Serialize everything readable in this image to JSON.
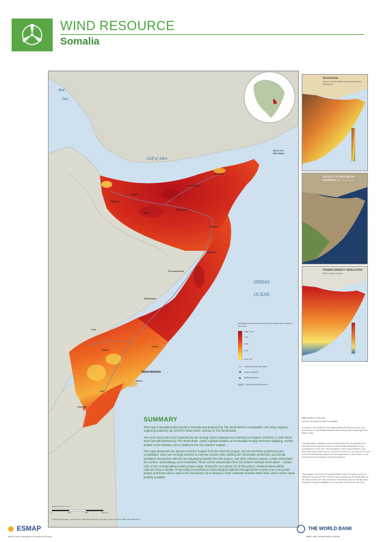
{
  "header": {
    "title": "WIND RESOURCE",
    "subtitle": "Somalia"
  },
  "map": {
    "sea_labels": {
      "gulf": "Gulf of Aden",
      "ocean_1": "INDIAN",
      "ocean_2": "OCEAN",
      "red_sea_1": "Red",
      "red_sea_2": "Sea"
    },
    "cape_label": "Abd al Kuri\n(Ras Asayr)",
    "capital": "MOGADISHU",
    "places": [
      "Bosaaso",
      "Berbera",
      "Hargeysa",
      "Burco",
      "Garoowe",
      "Gaalkacyo",
      "Beledweyne",
      "Baidoa",
      "Kismaayo",
      "Merca",
      "Jowhar",
      "Laascaanood",
      "Ceerigaabo",
      "Dhuusamarreeb",
      "Luuq",
      "Jilib"
    ]
  },
  "legend": {
    "title": "Simulated mean wind speed at 100 m height above ground level m/s",
    "high": "High: 11.4",
    "ticks": [
      "7.00",
      "5.25",
      "3.75"
    ],
    "low": "Low: 2.8",
    "items": [
      "Selected cities and towns",
      "Region capitals",
      "National capital",
      "International boundaries"
    ]
  },
  "side_panels": [
    {
      "title": "ELEVATION",
      "sub": "Source: Shuttle Radar Topography Mission (SRTM) 30"
    },
    {
      "title": "SATELLITE VIEW (BLUE MARBLE)",
      "sub": "Source: NASA Earth Observatory"
    },
    {
      "title": "POWER DENSITY SIMULATED",
      "sub": "W/m² at 100 m height"
    }
  ],
  "summary": {
    "heading": "SUMMARY",
    "paragraphs": [
      "This map of simulated wind speed in Somalia was prepared by The World Bank's cartographic unit using mapping outputs provided by 3E and DTU Wind under contract to The World Bank.",
      "The work was funded and supported by the Energy Sector Management Assistance Program (ESMAP), a multi-donor trust fund administered by The World Bank, under a global initiative on Renewable Energy Resource Mapping. Further details on the initiative can be obtained from the ESMAP website.",
      "The maps presented are based on interim outputs from the research project, and are therefore preliminary and unvalidated. Users are strongly advised to exercise caution when utilizing the information presented, and should familiarize themselves with the accompanying reports from this project, and other relevant outputs, to fully understand the context, methodology, and constraints. These can be downloaded from the ESMAP website listed above – please refer to the corresponding country project page. During the next phase (2) of this project, measurements will be collected from a number of specially-commissioned meteorological stations throughout the country over a 24-month period, and these will be used in the final phase (3) to develop a final, validated Somalia Wind Atlas, which will be made publicly available."
    ]
  },
  "right_notes": {
    "ibrd": "IBRD 42355 | TYPE 2018",
    "sources": "Sources: 3E and DTU Wind for ESMAP",
    "copyright": "Copyright © April 2018 The International Bank for Reconstruction and Development / THE WORLD BANK 1818 H Street, NW | Washington DC 20433 | USA",
    "disclaimer": "The World Bank, ESMAP and the working firm(s) do not guarantee the accuracy of this data and accept no responsibility whatsoever for any consequence of their use. The boundaries, colors, denominations, and other information shown on any map in this volume do not imply on the part of The World Bank any judgment on the legal status of any territory or the endorsement of acceptance of such boundaries.",
    "license": "This dataset is licensed by The World Bank under a Creative Commons Attribution license (CC BY 4.0 IGO). Users should cite The World Bank as the data provider and make reference to the Energy Sector Management Assistance Program (ESMAP) as the provider of funding for this work."
  },
  "scale": {
    "label": "Scale at center 1:7.5",
    "projection": "Coordinate System: GCS WGS 1984 Web Mercator (Auxiliary Sphere) WGS 1984 Web Mercator",
    "ticks": [
      "0",
      "100",
      "200",
      "300 km"
    ]
  },
  "footer": {
    "esmap": "ESMAP",
    "esmap_tagline": "Energy Sector Management Assistance Program",
    "wb": "THE WORLD BANK",
    "wb_tagline": "IBRD • IDA | WORLD BANK GROUP"
  },
  "colors": {
    "brand_green": "#5aa845",
    "title_green": "#4ea443",
    "sea": "#cfe1ef",
    "land": "#d9d8cd",
    "wind_high": "#c8161c",
    "wind_mid": "#ef6a22",
    "wind_low": "#f7d94a"
  }
}
